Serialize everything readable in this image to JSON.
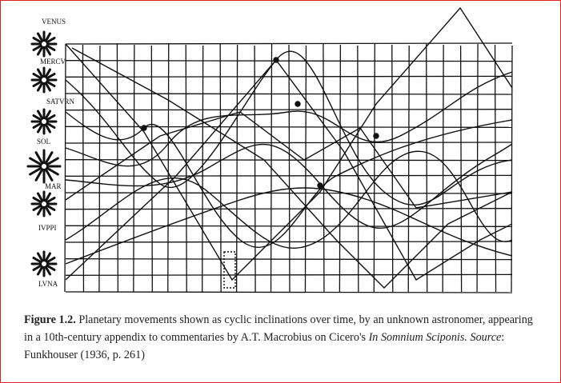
{
  "figure": {
    "planet_labels": [
      "VENUS",
      "MERCV",
      "SATVRN",
      "SOL",
      "MAR",
      "IVPPI",
      "LVNA"
    ],
    "ink_color": "#111111"
  },
  "caption": {
    "label": "Figure 1.2.",
    "text1": " Planetary movements shown as cyclic inclinations over time, by an unknown astronomer, appearing in a 10th-century appendix to commentaries by A.T. Macrobius on Cicero's ",
    "title_italic": "In Somnium Sciponis.",
    "source_label": " Source",
    "text2": ": Funkhouser (1936, p. 261)"
  }
}
